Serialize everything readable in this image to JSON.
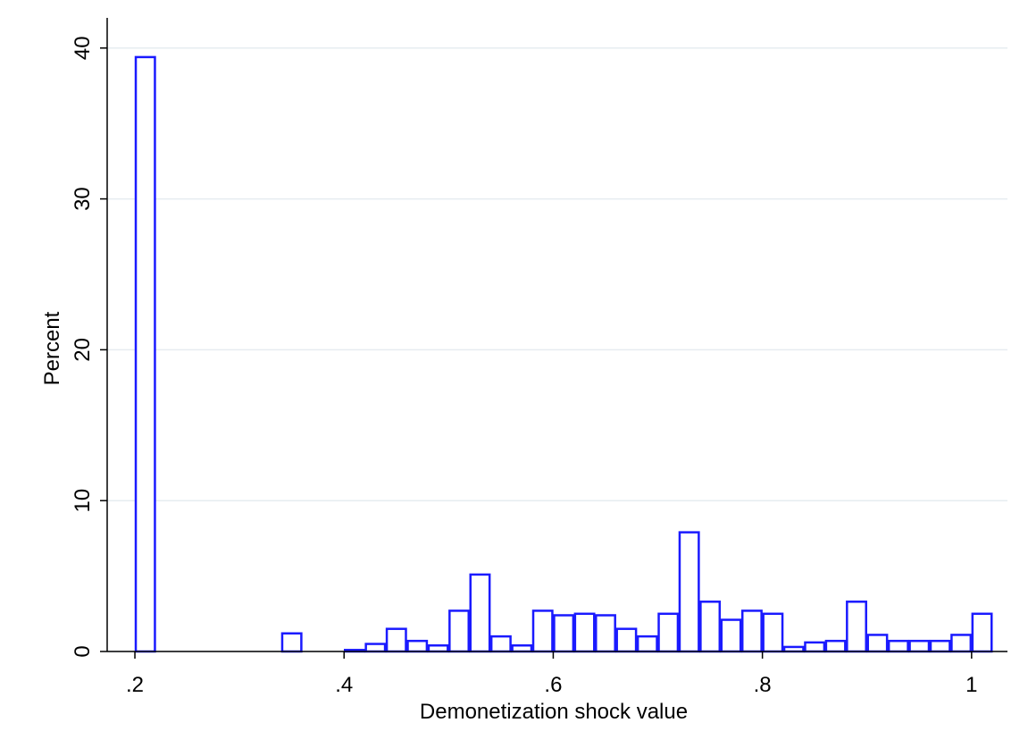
{
  "chart_data": {
    "type": "histogram",
    "x_label": "Demonetization shock value",
    "y_label": "Percent",
    "bins": [
      0.2,
      0.22,
      0.24,
      0.26,
      0.28,
      0.3,
      0.32,
      0.34,
      0.36,
      0.38,
      0.4,
      0.42,
      0.44,
      0.46,
      0.48,
      0.5,
      0.52,
      0.54,
      0.56,
      0.58,
      0.6,
      0.62,
      0.64,
      0.66,
      0.68,
      0.7,
      0.72,
      0.74,
      0.76,
      0.78,
      0.8,
      0.82,
      0.84,
      0.86,
      0.88,
      0.9,
      0.92,
      0.94,
      0.96,
      0.98,
      1.0,
      1.02
    ],
    "values": [
      39.4,
      0,
      0,
      0,
      0,
      0,
      0,
      1.2,
      0,
      0,
      0.1,
      0.5,
      1.5,
      0.7,
      0.4,
      2.7,
      5.1,
      1.0,
      0.4,
      2.7,
      2.4,
      2.5,
      2.4,
      1.5,
      1.0,
      2.5,
      7.9,
      3.3,
      2.1,
      2.7,
      2.5,
      0.3,
      0.6,
      0.7,
      3.3,
      1.1,
      0.7,
      0.7,
      0.7,
      1.1,
      2.5
    ],
    "color": "#1a1aff",
    "xlim": [
      0.1735,
      1.0343
    ],
    "ylim": [
      0,
      42
    ],
    "xticks": [
      {
        "value": 0.2,
        "label": ".2"
      },
      {
        "value": 0.4,
        "label": ".4"
      },
      {
        "value": 0.6,
        "label": ".6"
      },
      {
        "value": 0.8,
        "label": ".8"
      },
      1
    ],
    "yticks": [
      0,
      10,
      20,
      30,
      40
    ],
    "grid": true
  }
}
